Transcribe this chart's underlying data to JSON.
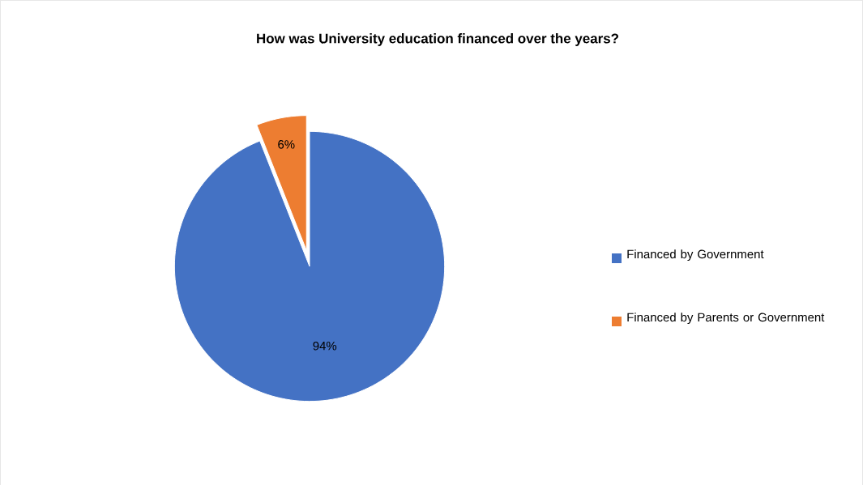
{
  "chart_data": {
    "type": "pie",
    "title": "How was University education financed over the years?",
    "categories": [
      "Financed by Government",
      "Financed by Parents or Government"
    ],
    "values": [
      94,
      6
    ],
    "colors": [
      "#4472c4",
      "#ed7d31"
    ],
    "value_labels": [
      "94%",
      "6%"
    ],
    "legend": "right"
  }
}
